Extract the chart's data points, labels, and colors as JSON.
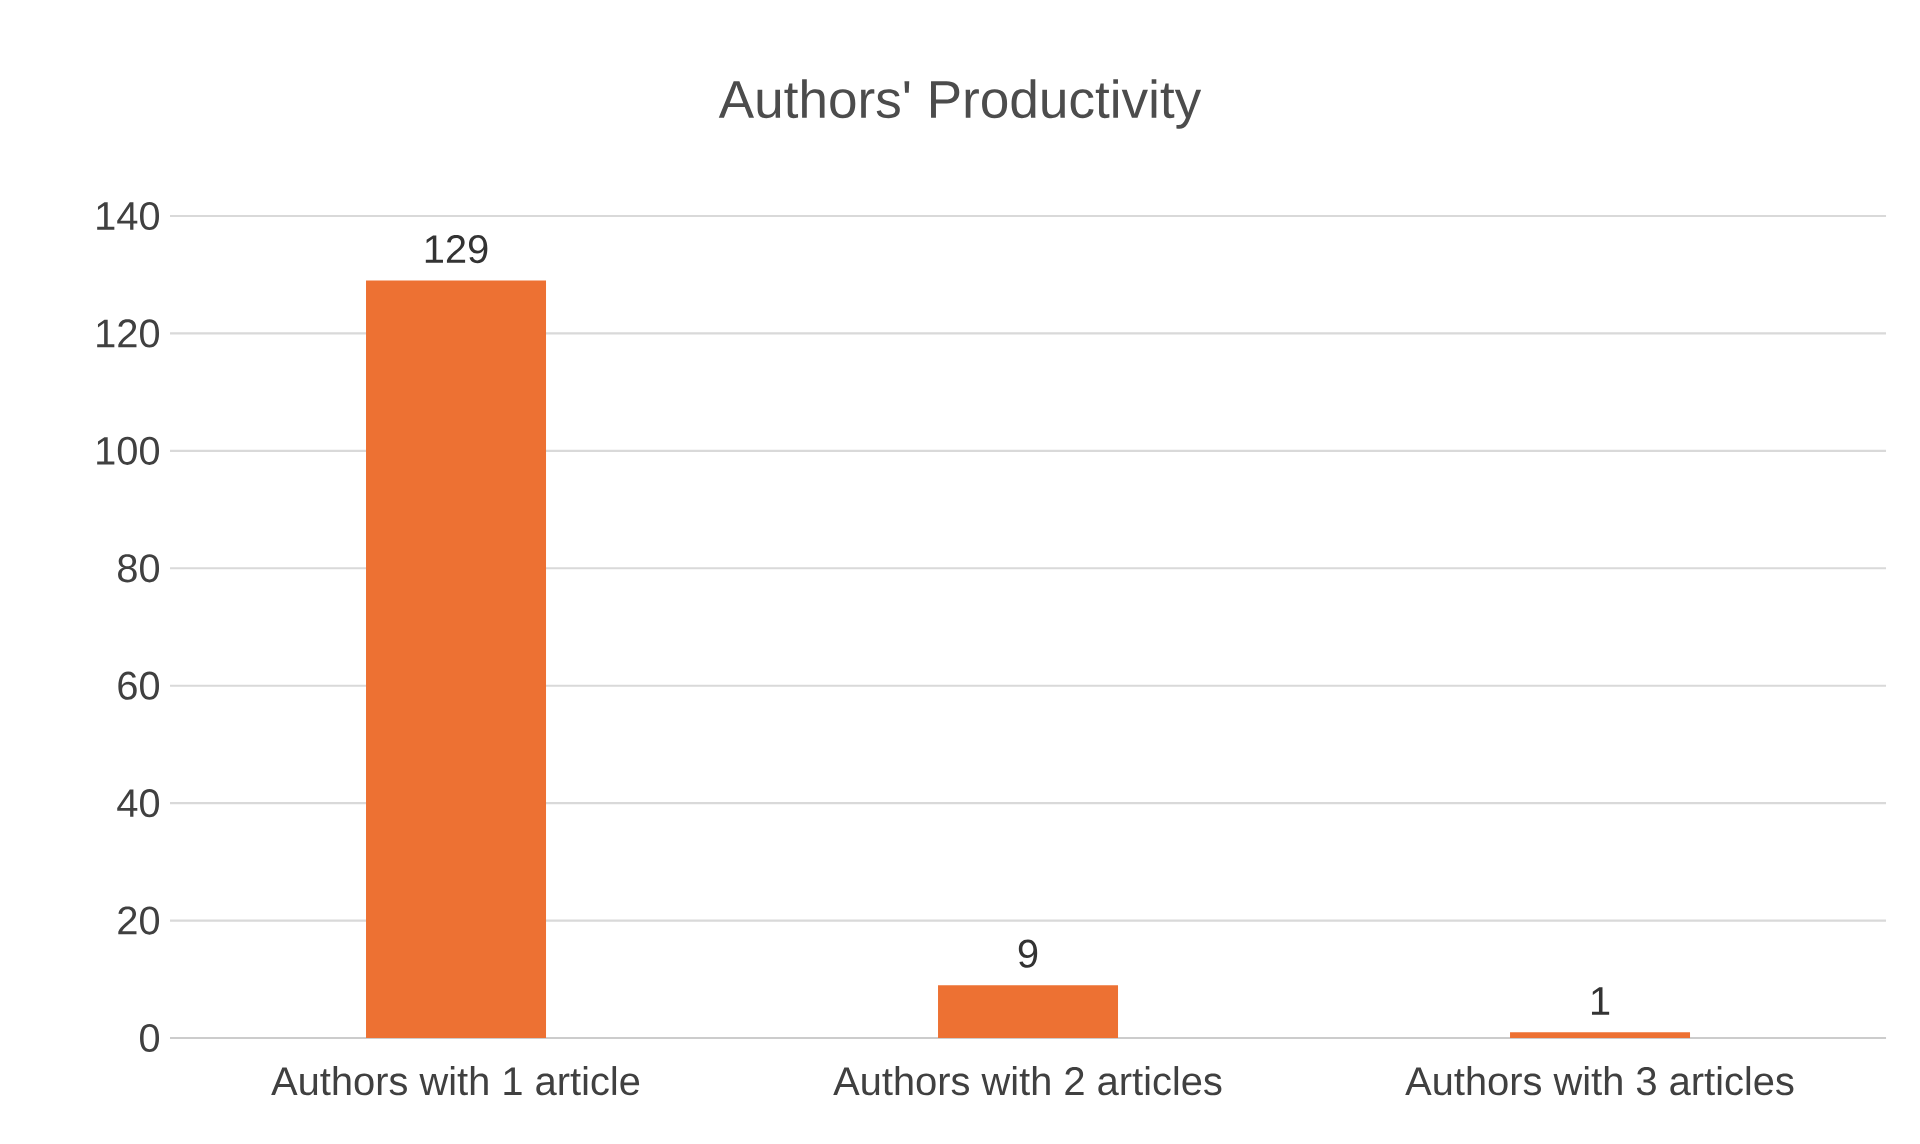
{
  "chart_data": {
    "type": "bar",
    "title": "Authors' Productivity",
    "categories": [
      "Authors with 1 article",
      "Authors with 2 articles",
      "Authors with 3 articles"
    ],
    "values": [
      129,
      9,
      1
    ],
    "color": "#ed7133",
    "ylim": [
      0,
      140
    ],
    "yticks": [
      0,
      20,
      40,
      60,
      80,
      100,
      120,
      140
    ],
    "grid": "y",
    "data_labels": true
  }
}
